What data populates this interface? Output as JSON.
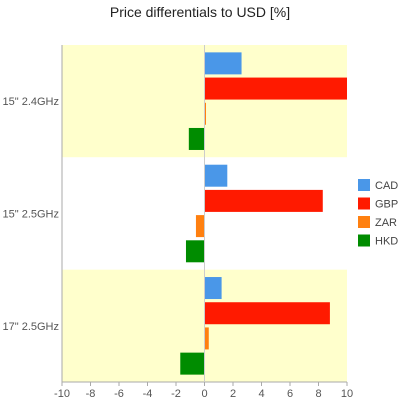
{
  "chart_data": {
    "type": "bar",
    "orientation": "horizontal",
    "title": "Price differentials to USD [%]",
    "xlabel": "",
    "ylabel": "",
    "categories": [
      "15\" 2.4GHz",
      "15\" 2.5GHz",
      "17\" 2.5GHz"
    ],
    "series": [
      {
        "name": "CAD",
        "color": "#4a97e8",
        "values": [
          2.6,
          1.6,
          1.2
        ]
      },
      {
        "name": "GBP",
        "color": "#ff1a00",
        "values": [
          10.0,
          8.3,
          8.8
        ]
      },
      {
        "name": "ZAR",
        "color": "#ff8010",
        "values": [
          0.1,
          -0.6,
          0.3
        ]
      },
      {
        "name": "HKD",
        "color": "#008c00",
        "values": [
          -1.1,
          -1.3,
          -1.7
        ]
      }
    ],
    "xlim": [
      -10,
      10
    ],
    "xticks": [
      -10,
      -8,
      -6,
      -4,
      -2,
      0,
      2,
      4,
      6,
      8,
      10
    ],
    "band_colors": [
      "#ffffcc",
      "#ffffff",
      "#ffffcc"
    ],
    "legend_position": "right",
    "grid": false
  }
}
